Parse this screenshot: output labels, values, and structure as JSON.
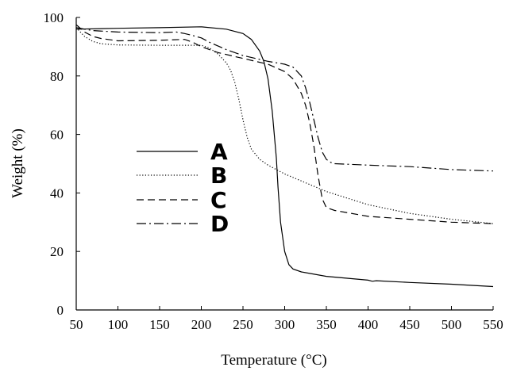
{
  "chart_data": {
    "type": "line",
    "title": "",
    "xlabel": "Temperature (°C)",
    "ylabel": "Weight (%)",
    "xlim": [
      50,
      550
    ],
    "ylim": [
      0,
      100
    ],
    "x_ticks": [
      50,
      100,
      150,
      200,
      250,
      300,
      350,
      400,
      450,
      500,
      550
    ],
    "y_ticks": [
      0,
      20,
      40,
      60,
      80,
      100
    ],
    "grid": false,
    "legend_position": "center-left",
    "series": [
      {
        "name": "A",
        "dash": "solid",
        "x": [
          50,
          100,
          150,
          200,
          230,
          250,
          260,
          270,
          275,
          280,
          285,
          290,
          292,
          295,
          300,
          305,
          310,
          320,
          350,
          400,
          405,
          410,
          450,
          500,
          550
        ],
        "y": [
          96.0,
          96.3,
          96.5,
          96.8,
          96.0,
          94.5,
          92.5,
          88.5,
          85.0,
          79.0,
          68.0,
          52.0,
          42.0,
          30.0,
          20.0,
          15.5,
          14.0,
          13.0,
          11.5,
          10.2,
          9.8,
          10.0,
          9.4,
          8.8,
          8.0
        ]
      },
      {
        "name": "B",
        "dash": "dotted",
        "x": [
          50,
          60,
          70,
          80,
          100,
          150,
          200,
          210,
          220,
          230,
          235,
          240,
          245,
          250,
          255,
          260,
          270,
          280,
          290,
          300,
          350,
          400,
          450,
          500,
          550
        ],
        "y": [
          96.5,
          93.5,
          91.8,
          91.0,
          90.6,
          90.5,
          90.5,
          89.5,
          87.5,
          84.5,
          82.0,
          78.0,
          72.0,
          65.0,
          59.0,
          55.0,
          51.5,
          49.5,
          48.0,
          46.5,
          40.5,
          36.0,
          33.0,
          31.0,
          29.5
        ]
      },
      {
        "name": "C",
        "dash": "dashed",
        "x": [
          50,
          60,
          70,
          80,
          100,
          150,
          180,
          190,
          200,
          220,
          250,
          280,
          300,
          310,
          320,
          325,
          330,
          335,
          340,
          345,
          350,
          360,
          400,
          450,
          500,
          550
        ],
        "y": [
          97.5,
          95.0,
          93.5,
          92.8,
          92.0,
          92.2,
          92.5,
          91.5,
          90.0,
          88.0,
          86.0,
          84.0,
          81.5,
          79.0,
          74.0,
          70.0,
          64.0,
          56.0,
          46.0,
          38.0,
          35.0,
          34.0,
          32.0,
          31.0,
          30.0,
          29.5
        ]
      },
      {
        "name": "D",
        "dash": "dash-dot",
        "x": [
          50,
          70,
          100,
          150,
          170,
          180,
          190,
          200,
          210,
          230,
          250,
          280,
          300,
          310,
          320,
          325,
          330,
          335,
          340,
          345,
          350,
          355,
          360,
          400,
          450,
          500,
          550
        ],
        "y": [
          96.5,
          95.5,
          95.0,
          94.8,
          95.0,
          94.5,
          93.8,
          93.0,
          91.5,
          89.0,
          87.0,
          85.0,
          84.0,
          83.0,
          80.0,
          76.0,
          71.0,
          65.0,
          59.0,
          54.0,
          51.5,
          50.5,
          50.0,
          49.5,
          49.0,
          48.0,
          47.5
        ]
      }
    ]
  }
}
